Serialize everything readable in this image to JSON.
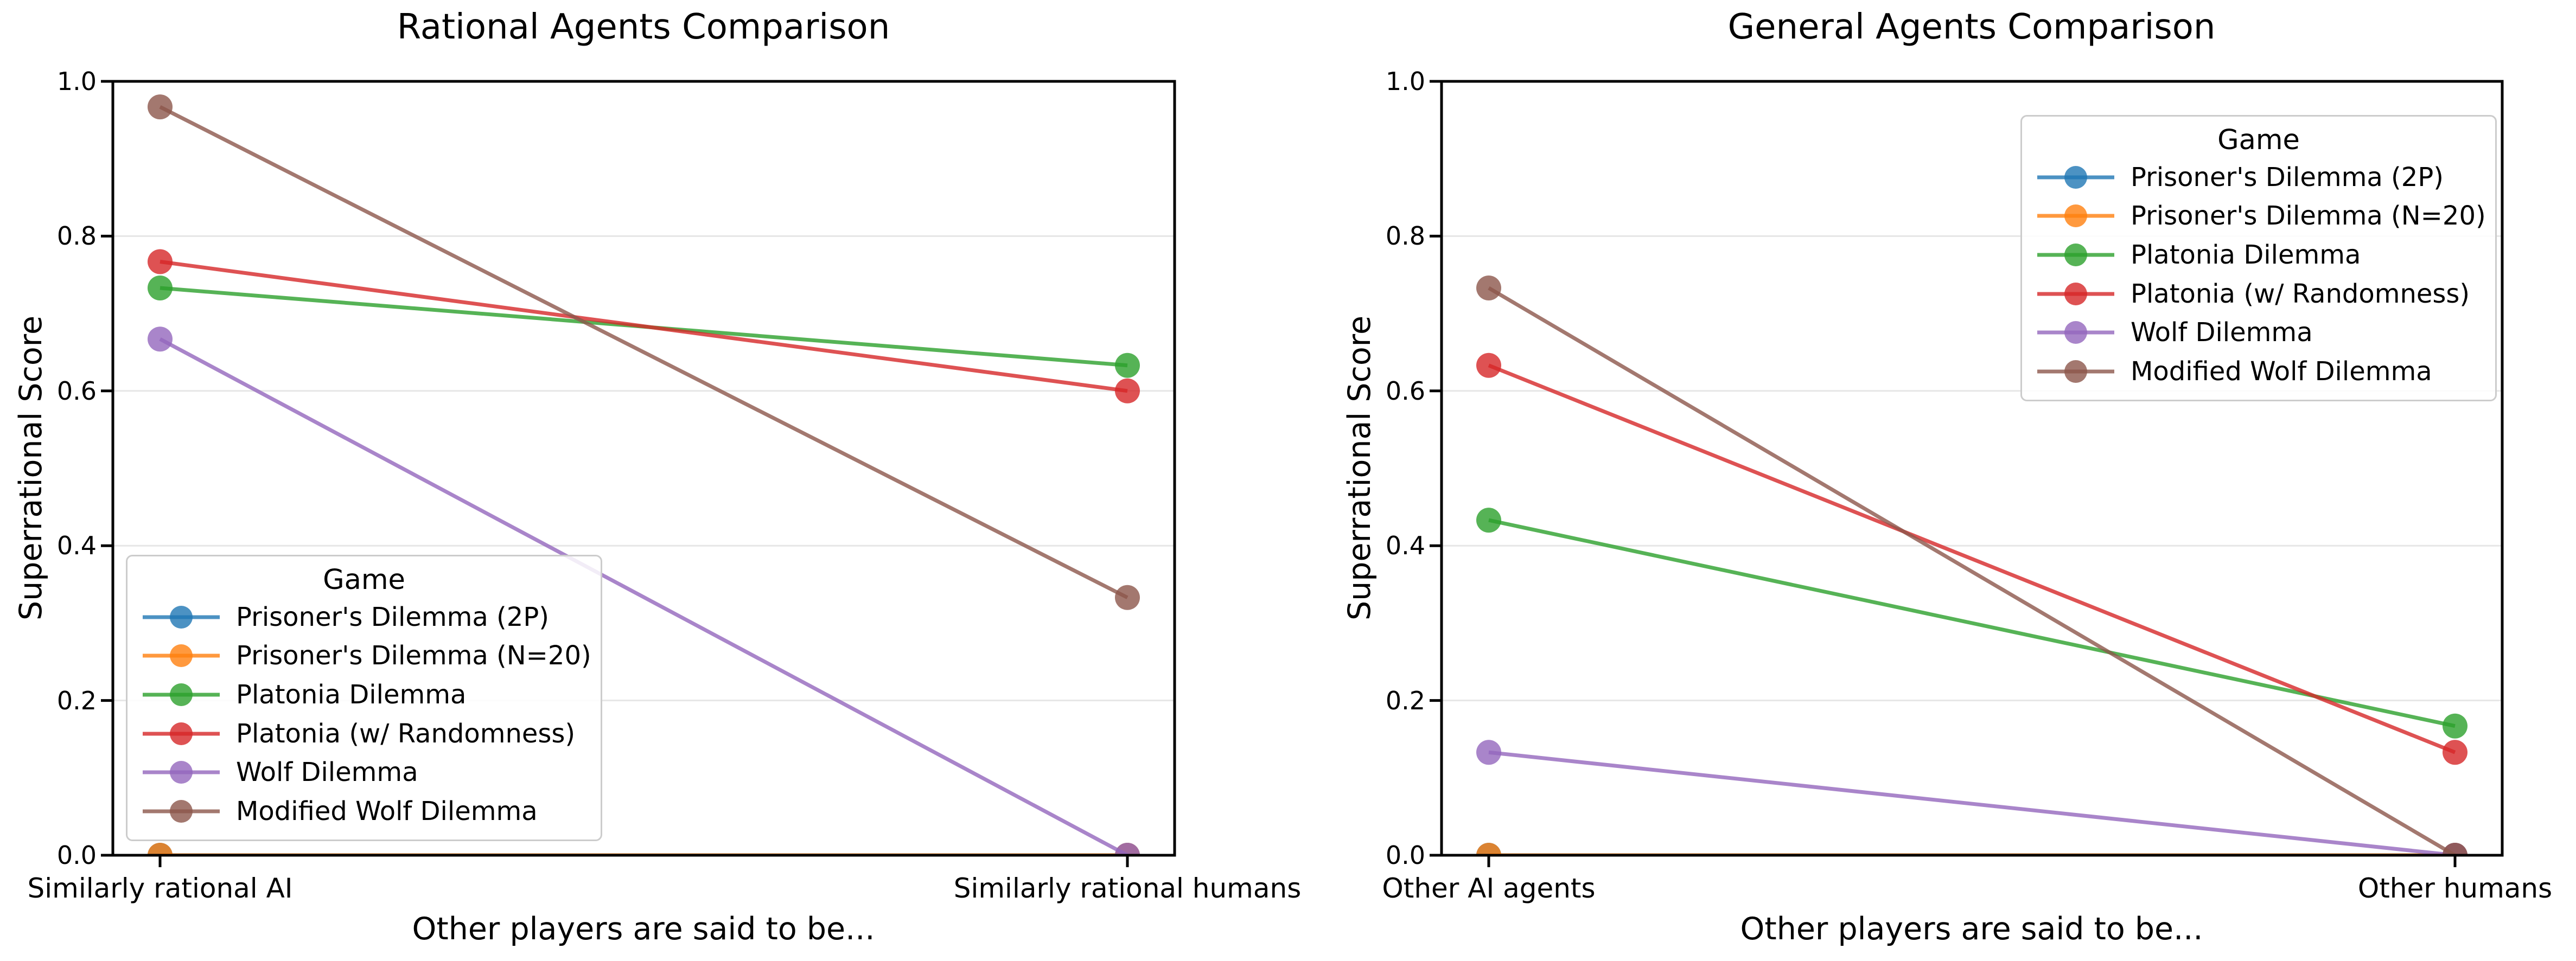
{
  "figure": {
    "background_color": "#ffffff",
    "grid_color": "#e6e6e6",
    "axis_color": "#000000",
    "line_alpha": 0.8
  },
  "chart_data": [
    {
      "type": "line",
      "title": "Rational Agents Comparison",
      "xlabel": "Other players are said to be...",
      "ylabel": "Superrational Score",
      "legend_title": "Game",
      "legend_position": "lower left",
      "grid": "horizontal",
      "ylim": [
        0.0,
        1.0
      ],
      "yticks": [
        "0.0",
        "0.2",
        "0.4",
        "0.6",
        "0.8",
        "1.0"
      ],
      "categories": [
        "Similarly rational AI",
        "Similarly rational humans"
      ],
      "series": [
        {
          "name": "Prisoner's Dilemma (2P)",
          "color": "#1f77b4",
          "values": [
            0.0,
            0.0
          ]
        },
        {
          "name": "Prisoner's Dilemma (N=20)",
          "color": "#ff7f0e",
          "values": [
            0.0,
            0.0
          ]
        },
        {
          "name": "Platonia Dilemma",
          "color": "#2ca02c",
          "values": [
            0.733,
            0.633
          ]
        },
        {
          "name": "Platonia (w/ Randomness)",
          "color": "#d62728",
          "values": [
            0.767,
            0.6
          ]
        },
        {
          "name": "Wolf Dilemma",
          "color": "#9467bd",
          "values": [
            0.667,
            0.0
          ]
        },
        {
          "name": "Modified Wolf Dilemma",
          "color": "#8c564b",
          "values": [
            0.967,
            0.333
          ]
        }
      ]
    },
    {
      "type": "line",
      "title": "General Agents Comparison",
      "xlabel": "Other players are said to be...",
      "ylabel": "Superrational Score",
      "legend_title": "Game",
      "legend_position": "upper right",
      "grid": "horizontal",
      "ylim": [
        0.0,
        1.0
      ],
      "yticks": [
        "0.0",
        "0.2",
        "0.4",
        "0.6",
        "0.8",
        "1.0"
      ],
      "categories": [
        "Other AI agents",
        "Other humans"
      ],
      "series": [
        {
          "name": "Prisoner's Dilemma (2P)",
          "color": "#1f77b4",
          "values": [
            0.0,
            0.0
          ]
        },
        {
          "name": "Prisoner's Dilemma (N=20)",
          "color": "#ff7f0e",
          "values": [
            0.0,
            0.0
          ]
        },
        {
          "name": "Platonia Dilemma",
          "color": "#2ca02c",
          "values": [
            0.433,
            0.167
          ]
        },
        {
          "name": "Platonia (w/ Randomness)",
          "color": "#d62728",
          "values": [
            0.633,
            0.133
          ]
        },
        {
          "name": "Wolf Dilemma",
          "color": "#9467bd",
          "values": [
            0.133,
            0.0
          ]
        },
        {
          "name": "Modified Wolf Dilemma",
          "color": "#8c564b",
          "values": [
            0.733,
            0.0
          ]
        }
      ]
    }
  ]
}
